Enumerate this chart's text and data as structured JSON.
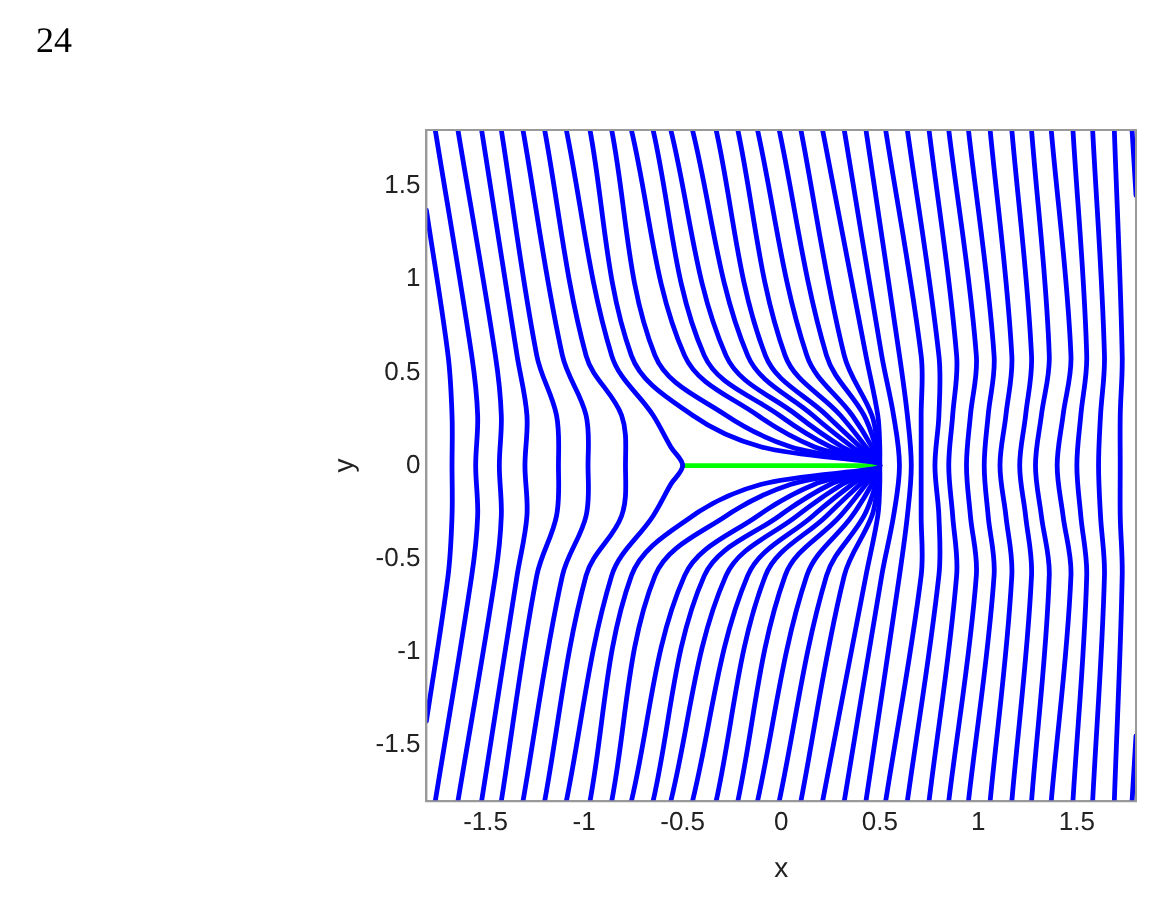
{
  "chart_data": {
    "type": "line",
    "xlabel": "x",
    "ylabel": "y",
    "annotations": [
      "24"
    ],
    "xlim": [
      -1.8,
      1.8
    ],
    "ylim": [
      -1.8,
      1.8
    ],
    "xticks": [
      -1.5,
      -1,
      -0.5,
      0,
      0.5,
      1,
      1.5
    ],
    "yticks": [
      -1.5,
      -1,
      -0.5,
      0,
      0.5,
      1,
      1.5
    ],
    "grid": false,
    "legend": false,
    "marker": "none",
    "line_style": "solid",
    "series": [
      {
        "color": "#0000ff",
        "x": [
          -1.8,
          -1.69,
          -1.67,
          -1.67,
          -1.67,
          -1.69,
          -1.8
        ],
        "values": [
          1.37,
          0.59,
          0.27,
          0,
          -0.27,
          -0.59,
          -1.37
        ]
      },
      {
        "color": "#0000ff",
        "x": [
          -1.755,
          -1.57,
          -1.54,
          -1.55,
          -1.54,
          -1.57,
          -1.755
        ],
        "values": [
          1.8,
          0.59,
          0.27,
          0,
          -0.27,
          -0.59,
          -1.8
        ]
      },
      {
        "color": "#0000ff",
        "x": [
          -1.64,
          -1.45,
          -1.42,
          -1.43,
          -1.42,
          -1.45,
          -1.64
        ],
        "values": [
          1.8,
          0.59,
          0.27,
          0,
          -0.27,
          -0.59,
          -1.8
        ]
      },
      {
        "color": "#0000ff",
        "x": [
          -1.52,
          -1.34,
          -1.29,
          -1.3,
          -1.29,
          -1.34,
          -1.52
        ],
        "values": [
          1.8,
          0.59,
          0.27,
          0,
          -0.27,
          -0.59,
          -1.8
        ]
      },
      {
        "color": "#0000ff",
        "x": [
          -1.42,
          -1.24,
          -1.14,
          -1.13,
          -1.14,
          -1.24,
          -1.42
        ],
        "values": [
          1.8,
          0.59,
          0.27,
          0,
          -0.27,
          -0.59,
          -1.8
        ]
      },
      {
        "color": "#0000ff",
        "x": [
          -1.31,
          -1.11,
          -0.99,
          -0.98,
          -0.99,
          -1.11,
          -1.31
        ],
        "values": [
          1.8,
          0.59,
          0.27,
          0,
          -0.27,
          -0.59,
          -1.8
        ]
      },
      {
        "color": "#0000ff",
        "x": [
          -1.2,
          -0.99,
          -0.81,
          -0.79,
          -0.81,
          -0.99,
          -1.2
        ],
        "values": [
          1.8,
          0.59,
          0.27,
          0,
          -0.27,
          -0.59,
          -1.8
        ]
      },
      {
        "color": "#0000ff",
        "x": [
          -1.09,
          -0.86,
          -0.65,
          -0.56,
          -0.5,
          -0.56,
          -0.65,
          -0.86,
          -1.09
        ],
        "values": [
          1.8,
          0.59,
          0.27,
          0.1,
          0,
          -0.1,
          -0.27,
          -0.59,
          -1.8
        ]
      },
      {
        "color": "#0000ff",
        "x": [
          -0.97,
          -0.76,
          -0.45,
          -0.1,
          0.5,
          -0.1,
          -0.45,
          -0.76,
          -0.97
        ],
        "values": [
          1.8,
          0.59,
          0.27,
          0.1,
          0,
          -0.1,
          -0.27,
          -0.59,
          -1.8
        ]
      },
      {
        "color": "#0000ff",
        "x": [
          -0.86,
          -0.64,
          -0.28,
          0.05,
          0.5,
          0.05,
          -0.28,
          -0.64,
          -0.86
        ],
        "values": [
          1.8,
          0.59,
          0.27,
          0.1,
          0,
          -0.1,
          -0.27,
          -0.59,
          -1.8
        ]
      },
      {
        "color": "#0000ff",
        "x": [
          -0.76,
          -0.49,
          -0.12,
          0.17,
          0.5,
          0.17,
          -0.12,
          -0.49,
          -0.76
        ],
        "values": [
          1.8,
          0.59,
          0.27,
          0.1,
          0,
          -0.1,
          -0.27,
          -0.59,
          -1.8
        ]
      },
      {
        "color": "#0000ff",
        "x": [
          -0.65,
          -0.39,
          -0.01,
          0.25,
          0.5,
          0.25,
          -0.01,
          -0.39,
          -0.65
        ],
        "values": [
          1.8,
          0.59,
          0.27,
          0.1,
          0,
          -0.1,
          -0.27,
          -0.59,
          -1.8
        ]
      },
      {
        "color": "#0000ff",
        "x": [
          -0.56,
          -0.28,
          0.08,
          0.31,
          0.5,
          0.31,
          0.08,
          -0.28,
          -0.56
        ],
        "values": [
          1.8,
          0.59,
          0.27,
          0.1,
          0,
          -0.1,
          -0.27,
          -0.59,
          -1.8
        ]
      },
      {
        "color": "#0000ff",
        "x": [
          -0.45,
          -0.17,
          0.16,
          0.36,
          0.5,
          0.36,
          0.16,
          -0.17,
          -0.45
        ],
        "values": [
          1.8,
          0.59,
          0.27,
          0.1,
          0,
          -0.1,
          -0.27,
          -0.59,
          -1.8
        ]
      },
      {
        "color": "#0000ff",
        "x": [
          -0.33,
          -0.08,
          0.23,
          0.4,
          0.5,
          0.4,
          0.23,
          -0.08,
          -0.33
        ],
        "values": [
          1.8,
          0.59,
          0.27,
          0.1,
          0,
          -0.1,
          -0.27,
          -0.59,
          -1.8
        ]
      },
      {
        "color": "#0000ff",
        "x": [
          -0.22,
          0.02,
          0.3,
          0.43,
          0.5,
          0.43,
          0.3,
          0.02,
          -0.22
        ],
        "values": [
          1.8,
          0.59,
          0.27,
          0.1,
          0,
          -0.1,
          -0.27,
          -0.59,
          -1.8
        ]
      },
      {
        "color": "#0000ff",
        "x": [
          -0.12,
          0.13,
          0.36,
          0.46,
          0.5,
          0.46,
          0.36,
          0.13,
          -0.12
        ],
        "values": [
          1.8,
          0.59,
          0.27,
          0.1,
          0,
          -0.1,
          -0.27,
          -0.59,
          -1.8
        ]
      },
      {
        "color": "#0000ff",
        "x": [
          -0.01,
          0.23,
          0.42,
          0.48,
          0.5,
          0.48,
          0.42,
          0.23,
          -0.01
        ],
        "values": [
          1.8,
          0.59,
          0.27,
          0.1,
          0,
          -0.1,
          -0.27,
          -0.59,
          -1.8
        ]
      },
      {
        "color": "#0000ff",
        "x": [
          0.1,
          0.32,
          0.46,
          0.49,
          0.5,
          0.49,
          0.46,
          0.32,
          0.1
        ],
        "values": [
          1.8,
          0.59,
          0.27,
          0.1,
          0,
          -0.1,
          -0.27,
          -0.59,
          -1.8
        ]
      },
      {
        "color": "#0000ff",
        "x": [
          0.21,
          0.43,
          0.49,
          0.5,
          0.5,
          0.5,
          0.49,
          0.43,
          0.21
        ],
        "values": [
          1.8,
          0.59,
          0.27,
          0.1,
          0,
          -0.1,
          -0.27,
          -0.59,
          -1.8
        ]
      },
      {
        "color": "#0000ff",
        "x": [
          0.32,
          0.51,
          0.57,
          0.6,
          0.57,
          0.51,
          0.32
        ],
        "values": [
          1.8,
          0.59,
          0.27,
          0,
          -0.27,
          -0.59,
          -1.8
        ]
      },
      {
        "color": "#0000ff",
        "x": [
          0.43,
          0.6,
          0.64,
          0.66,
          0.64,
          0.6,
          0.43
        ],
        "values": [
          1.8,
          0.59,
          0.27,
          0,
          -0.27,
          -0.59,
          -1.8
        ]
      },
      {
        "color": "#0000ff",
        "x": [
          0.53,
          0.71,
          0.71,
          0.71,
          0.71,
          0.71,
          0.53
        ],
        "values": [
          1.8,
          0.59,
          0.27,
          0,
          -0.27,
          -0.59,
          -1.8
        ]
      },
      {
        "color": "#0000ff",
        "x": [
          0.64,
          0.8,
          0.8,
          0.78,
          0.8,
          0.8,
          0.64
        ],
        "values": [
          1.8,
          0.59,
          0.27,
          0,
          -0.27,
          -0.59,
          -1.8
        ]
      },
      {
        "color": "#0000ff",
        "x": [
          0.75,
          0.89,
          0.87,
          0.85,
          0.87,
          0.89,
          0.75
        ],
        "values": [
          1.8,
          0.59,
          0.27,
          0,
          -0.27,
          -0.59,
          -1.8
        ]
      },
      {
        "color": "#0000ff",
        "x": [
          0.85,
          0.99,
          0.96,
          0.94,
          0.96,
          0.99,
          0.85
        ],
        "values": [
          1.8,
          0.59,
          0.27,
          0,
          -0.27,
          -0.59,
          -1.8
        ]
      },
      {
        "color": "#0000ff",
        "x": [
          0.95,
          1.08,
          1.05,
          1.03,
          1.05,
          1.08,
          0.95
        ],
        "values": [
          1.8,
          0.59,
          0.27,
          0,
          -0.27,
          -0.59,
          -1.8
        ]
      },
      {
        "color": "#0000ff",
        "x": [
          1.06,
          1.17,
          1.14,
          1.11,
          1.14,
          1.17,
          1.06
        ],
        "values": [
          1.8,
          0.59,
          0.27,
          0,
          -0.27,
          -0.59,
          -1.8
        ]
      },
      {
        "color": "#0000ff",
        "x": [
          1.17,
          1.27,
          1.24,
          1.21,
          1.24,
          1.27,
          1.17
        ],
        "values": [
          1.8,
          0.59,
          0.27,
          0,
          -0.27,
          -0.59,
          -1.8
        ]
      },
      {
        "color": "#0000ff",
        "x": [
          1.27,
          1.36,
          1.32,
          1.29,
          1.32,
          1.36,
          1.27
        ],
        "values": [
          1.8,
          0.59,
          0.27,
          0,
          -0.27,
          -0.59,
          -1.8
        ]
      },
      {
        "color": "#0000ff",
        "x": [
          1.37,
          1.47,
          1.43,
          1.4,
          1.43,
          1.47,
          1.37
        ],
        "values": [
          1.8,
          0.59,
          0.27,
          0,
          -0.27,
          -0.59,
          -1.8
        ]
      },
      {
        "color": "#0000ff",
        "x": [
          1.48,
          1.55,
          1.52,
          1.5,
          1.52,
          1.55,
          1.48
        ],
        "values": [
          1.8,
          0.59,
          0.27,
          0,
          -0.27,
          -0.59,
          -1.8
        ]
      },
      {
        "color": "#0000ff",
        "x": [
          1.58,
          1.64,
          1.62,
          1.61,
          1.62,
          1.64,
          1.58
        ],
        "values": [
          1.8,
          0.59,
          0.27,
          0,
          -0.27,
          -0.59,
          -1.8
        ]
      },
      {
        "color": "#0000ff",
        "x": [
          1.69,
          1.73,
          1.72,
          1.72,
          1.72,
          1.73,
          1.69
        ],
        "values": [
          1.8,
          0.59,
          0.27,
          0,
          -0.27,
          -0.59,
          -1.8
        ]
      },
      {
        "color": "#0000ff",
        "x": [
          1.78,
          1.8
        ],
        "values": [
          1.8,
          1.45
        ]
      },
      {
        "color": "#0000ff",
        "x": [
          1.8,
          1.78
        ],
        "values": [
          -1.45,
          -1.8
        ]
      },
      {
        "color": "#00ff00",
        "x": [
          -0.5,
          0.5
        ],
        "values": [
          0,
          0
        ]
      }
    ]
  }
}
